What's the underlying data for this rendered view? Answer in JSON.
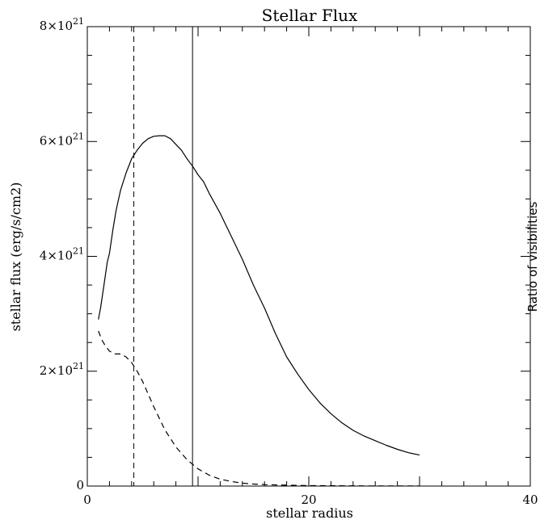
{
  "chart_data": {
    "type": "line",
    "title": "Stellar Flux",
    "xlabel": "stellar radius",
    "ylabel": "stellar flux (erg/s/cm2)",
    "y2label": "Ratio of visibilities",
    "xlim": [
      0,
      40
    ],
    "ylim": [
      0,
      8e+21
    ],
    "grid": false,
    "x_ticks": [
      {
        "value": 0,
        "label": "0"
      },
      {
        "value": 20,
        "label": "20"
      },
      {
        "value": 40,
        "label": "40"
      }
    ],
    "y_ticks": [
      {
        "value": 0,
        "base": "0",
        "exp": ""
      },
      {
        "value": 2e+21,
        "base": "2×10",
        "exp": "21"
      },
      {
        "value": 4e+21,
        "base": "4×10",
        "exp": "21"
      },
      {
        "value": 6e+21,
        "base": "6×10",
        "exp": "21"
      },
      {
        "value": 8e+21,
        "base": "8×10",
        "exp": "21"
      }
    ],
    "vertical_lines": [
      {
        "x": 4.2,
        "style": "dashed"
      },
      {
        "x": 9.5,
        "style": "solid"
      }
    ],
    "series": [
      {
        "style": "solid",
        "x": [
          1.0,
          1.2,
          1.5,
          1.8,
          2.0,
          2.3,
          2.6,
          3.0,
          3.5,
          4.0,
          4.5,
          5.0,
          5.5,
          6.0,
          6.5,
          7.0,
          7.5,
          8.0,
          8.5,
          9.0,
          9.5,
          10.0,
          10.5,
          11,
          12,
          13,
          14,
          15,
          16,
          17,
          18,
          19,
          20,
          21,
          22,
          23,
          24,
          25,
          26,
          27,
          28,
          29,
          30
        ],
        "y": [
          2.9e+21,
          3.1e+21,
          3.5e+21,
          3.9e+21,
          4.05e+21,
          4.45e+21,
          4.8e+21,
          5.15e+21,
          5.45e+21,
          5.7e+21,
          5.85e+21,
          5.97e+21,
          6.05e+21,
          6.09e+21,
          6.1e+21,
          6.1e+21,
          6.05e+21,
          5.95e+21,
          5.85e+21,
          5.7e+21,
          5.57e+21,
          5.42e+21,
          5.3e+21,
          5.1e+21,
          4.75e+21,
          4.35e+21,
          3.95e+21,
          3.5e+21,
          3.1e+21,
          2.65e+21,
          2.25e+21,
          1.95e+21,
          1.68e+21,
          1.45e+21,
          1.26e+21,
          1.1e+21,
          9.7e+20,
          8.7e+20,
          7.9e+20,
          7.1e+20,
          6.4e+20,
          5.8e+20,
          5.4e+20
        ]
      },
      {
        "style": "dashed",
        "x": [
          1.0,
          1.3,
          1.6,
          2.0,
          2.5,
          3.0,
          3.5,
          4.0,
          4.5,
          5.0,
          5.5,
          6.0,
          7.0,
          8.0,
          9.0,
          10.0,
          11,
          12,
          13,
          14,
          15,
          16,
          18,
          20,
          22,
          25,
          30
        ],
        "y": [
          2.7e+21,
          2.55e+21,
          2.45e+21,
          2.35e+21,
          2.3e+21,
          2.3e+21,
          2.25e+21,
          2.15e+21,
          2e+21,
          1.82e+21,
          1.6e+21,
          1.38e+21,
          9.8e+20,
          6.8e+20,
          4.6e+20,
          3e+20,
          1.9e+20,
          1.2e+20,
          8e+19,
          5e+19,
          3.5e+19,
          2.5e+19,
          1.5e+19,
          8e+18,
          5e+18,
          3e+18,
          1e+18
        ]
      }
    ]
  }
}
